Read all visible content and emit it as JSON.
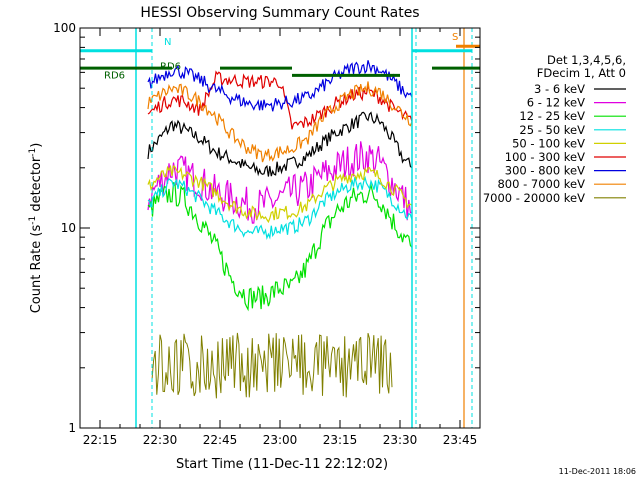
{
  "chart_data": {
    "type": "line",
    "title": "HESSI Observing Summary Count Rates",
    "xlabel": "Start Time (11-Dec-11 22:12:02)",
    "ylabel": "Count Rate (s",
    "ylabel_sup": "-1",
    "ylabel_tail": " detector",
    "ylabel_sup2": "-1",
    "ylabel_close": ")",
    "xlim": [
      "22:10",
      "23:50"
    ],
    "ylim": [
      1,
      100
    ],
    "yscale": "log",
    "x_ticks": [
      "22:15",
      "22:30",
      "22:45",
      "23:00",
      "23:15",
      "23:30",
      "23:45"
    ],
    "y_ticks": [
      "1",
      "10",
      "100"
    ],
    "legend_header": [
      "Det 1,3,4,5,6,",
      "FDecim 1, Att 0"
    ],
    "legend_placement": "right",
    "timestamp": "11-Dec-2011 18:06",
    "series": [
      {
        "name": "3 - 6 keV",
        "color": "#000000",
        "points": [
          [
            "22:27",
            24
          ],
          [
            "22:30",
            28
          ],
          [
            "22:33",
            33
          ],
          [
            "22:36",
            31
          ],
          [
            "22:40",
            28
          ],
          [
            "22:44",
            24
          ],
          [
            "22:48",
            22
          ],
          [
            "22:52",
            20
          ],
          [
            "22:56",
            19
          ],
          [
            "23:00",
            20
          ],
          [
            "23:03",
            21
          ],
          [
            "23:07",
            23
          ],
          [
            "23:10",
            26
          ],
          [
            "23:14",
            30
          ],
          [
            "23:18",
            33
          ],
          [
            "23:22",
            36
          ],
          [
            "23:25",
            34
          ],
          [
            "23:28",
            28
          ],
          [
            "23:31",
            22
          ],
          [
            "23:33",
            20
          ]
        ]
      },
      {
        "name": "6 - 12 keV",
        "color": "#e000e0",
        "points": [
          [
            "22:27",
            14
          ],
          [
            "22:30",
            17
          ],
          [
            "22:33",
            20
          ],
          [
            "22:36",
            19
          ],
          [
            "22:40",
            17
          ],
          [
            "22:44",
            15
          ],
          [
            "22:48",
            14
          ],
          [
            "22:52",
            13
          ],
          [
            "22:56",
            13
          ],
          [
            "23:00",
            14
          ],
          [
            "23:03",
            15
          ],
          [
            "23:07",
            16
          ],
          [
            "23:10",
            18
          ],
          [
            "23:14",
            20
          ],
          [
            "23:18",
            22
          ],
          [
            "23:22",
            23
          ],
          [
            "23:25",
            21
          ],
          [
            "23:28",
            17
          ],
          [
            "23:31",
            14
          ],
          [
            "23:33",
            12
          ]
        ]
      },
      {
        "name": "12 - 25 keV",
        "color": "#00e000",
        "points": [
          [
            "22:27",
            12
          ],
          [
            "22:30",
            14
          ],
          [
            "22:33",
            15
          ],
          [
            "22:36",
            14
          ],
          [
            "22:40",
            11
          ],
          [
            "22:44",
            8
          ],
          [
            "22:48",
            5.5
          ],
          [
            "22:52",
            4.5
          ],
          [
            "22:56",
            4.5
          ],
          [
            "23:00",
            5
          ],
          [
            "23:03",
            5
          ],
          [
            "23:07",
            6.5
          ],
          [
            "23:10",
            9
          ],
          [
            "23:14",
            12
          ],
          [
            "23:18",
            14
          ],
          [
            "23:22",
            15
          ],
          [
            "23:25",
            14
          ],
          [
            "23:28",
            11
          ],
          [
            "23:31",
            9
          ],
          [
            "23:33",
            8
          ]
        ]
      },
      {
        "name": "25 - 50 keV",
        "color": "#00e0e0",
        "points": [
          [
            "22:27",
            13
          ],
          [
            "22:30",
            15
          ],
          [
            "22:33",
            17
          ],
          [
            "22:36",
            16
          ],
          [
            "22:40",
            14
          ],
          [
            "22:44",
            12
          ],
          [
            "22:48",
            10.5
          ],
          [
            "22:52",
            9.5
          ],
          [
            "22:56",
            9.5
          ],
          [
            "23:00",
            10
          ],
          [
            "23:03",
            10
          ],
          [
            "23:07",
            11
          ],
          [
            "23:10",
            13
          ],
          [
            "23:14",
            15
          ],
          [
            "23:18",
            16.5
          ],
          [
            "23:22",
            17
          ],
          [
            "23:25",
            16
          ],
          [
            "23:28",
            14
          ],
          [
            "23:31",
            12
          ],
          [
            "23:33",
            11
          ]
        ]
      },
      {
        "name": "50 - 100 keV",
        "color": "#d0d000",
        "points": [
          [
            "22:27",
            16
          ],
          [
            "22:30",
            18
          ],
          [
            "22:33",
            19
          ],
          [
            "22:36",
            18.5
          ],
          [
            "22:40",
            17
          ],
          [
            "22:44",
            15
          ],
          [
            "22:48",
            13
          ],
          [
            "22:52",
            12
          ],
          [
            "22:56",
            11.5
          ],
          [
            "23:00",
            12
          ],
          [
            "23:03",
            12
          ],
          [
            "23:07",
            13
          ],
          [
            "23:10",
            15
          ],
          [
            "23:14",
            17
          ],
          [
            "23:18",
            18.5
          ],
          [
            "23:22",
            19
          ],
          [
            "23:25",
            18
          ],
          [
            "23:28",
            16
          ],
          [
            "23:31",
            14
          ],
          [
            "23:33",
            13
          ]
        ]
      },
      {
        "name": "100 - 300 keV",
        "color": "#e00000",
        "points": [
          [
            "22:27",
            37
          ],
          [
            "22:30",
            41
          ],
          [
            "22:33",
            44
          ],
          [
            "22:36",
            43
          ],
          [
            "22:40",
            39
          ],
          [
            "22:44",
            56
          ],
          [
            "22:48",
            55
          ],
          [
            "22:52",
            54
          ],
          [
            "22:56",
            54
          ],
          [
            "23:00",
            54
          ],
          [
            "23:03",
            32
          ],
          [
            "23:07",
            34
          ],
          [
            "23:10",
            37
          ],
          [
            "23:14",
            42
          ],
          [
            "23:18",
            46
          ],
          [
            "23:22",
            48
          ],
          [
            "23:25",
            45
          ],
          [
            "23:28",
            40
          ],
          [
            "23:31",
            36
          ],
          [
            "23:33",
            34
          ]
        ]
      },
      {
        "name": "300 - 800 keV",
        "color": "#0000e0",
        "points": [
          [
            "22:27",
            52
          ],
          [
            "22:30",
            57
          ],
          [
            "22:33",
            62
          ],
          [
            "22:36",
            60
          ],
          [
            "22:40",
            55
          ],
          [
            "22:44",
            49
          ],
          [
            "22:48",
            45
          ],
          [
            "22:52",
            42
          ],
          [
            "22:56",
            41
          ],
          [
            "23:00",
            42
          ],
          [
            "23:03",
            43
          ],
          [
            "23:07",
            45
          ],
          [
            "23:10",
            50
          ],
          [
            "23:14",
            57
          ],
          [
            "23:18",
            63
          ],
          [
            "23:22",
            65
          ],
          [
            "23:25",
            62
          ],
          [
            "23:28",
            55
          ],
          [
            "23:31",
            48
          ],
          [
            "23:33",
            45
          ]
        ]
      },
      {
        "name": "800 - 7000 keV",
        "color": "#f08000",
        "points": [
          [
            "22:27",
            42
          ],
          [
            "22:30",
            46
          ],
          [
            "22:33",
            50
          ],
          [
            "22:36",
            48
          ],
          [
            "22:40",
            43
          ],
          [
            "22:44",
            36
          ],
          [
            "22:48",
            29
          ],
          [
            "22:52",
            25
          ],
          [
            "22:56",
            23
          ],
          [
            "23:00",
            24
          ],
          [
            "23:03",
            25
          ],
          [
            "23:07",
            28
          ],
          [
            "23:10",
            34
          ],
          [
            "23:14",
            41
          ],
          [
            "23:18",
            47
          ],
          [
            "23:22",
            50
          ],
          [
            "23:25",
            48
          ],
          [
            "23:28",
            42
          ],
          [
            "23:31",
            37
          ],
          [
            "23:33",
            34
          ]
        ]
      },
      {
        "name": "7000 - 20000 keV",
        "color": "#808000",
        "points": [
          [
            "22:28",
            1.8
          ],
          [
            "22:30",
            1.7
          ],
          [
            "22:33",
            2.3
          ],
          [
            "22:36",
            2.6
          ],
          [
            "22:40",
            2.2
          ],
          [
            "23:14",
            1.9
          ],
          [
            "23:18",
            2.1
          ],
          [
            "23:22",
            2.2
          ],
          [
            "23:26",
            1.8
          ],
          [
            "23:28",
            1.6
          ]
        ]
      }
    ],
    "annotations": [
      {
        "text": "N",
        "color": "#00e0e0"
      },
      {
        "text": "RD6",
        "color": "#006000"
      },
      {
        "text": "RD6",
        "color": "#006000"
      },
      {
        "text": "S",
        "color": "#f08000"
      }
    ]
  }
}
